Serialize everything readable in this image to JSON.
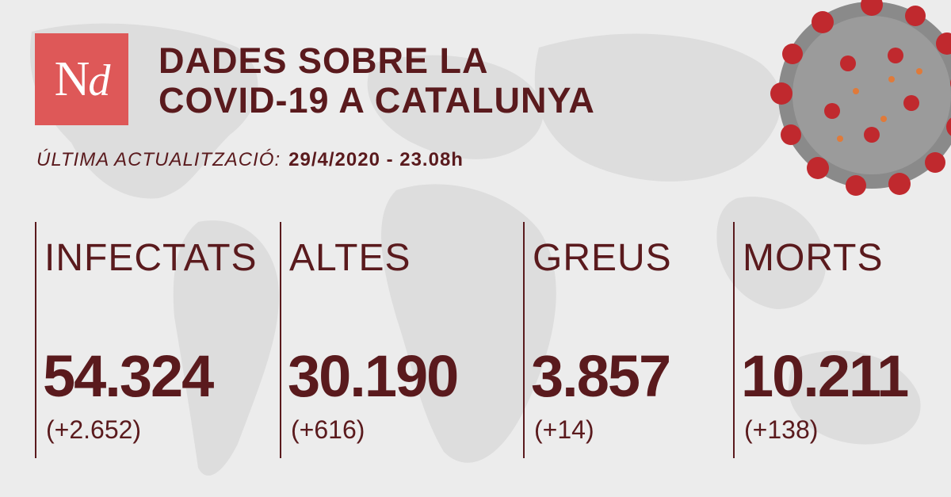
{
  "logo": {
    "text_n": "N",
    "text_d": "d"
  },
  "header": {
    "title_line1": "DADES SOBRE LA",
    "title_line2": "COVID-19 A CATALUNYA"
  },
  "update": {
    "label": "ÚLTIMA ACTUALITZACIÓ:",
    "timestamp": "29/4/2020 - 23.08h"
  },
  "stats": [
    {
      "label": "INFECTATS",
      "value": "54.324",
      "delta": "(+2.652)"
    },
    {
      "label": "ALTES",
      "value": "30.190",
      "delta": "(+616)"
    },
    {
      "label": "GREUS",
      "value": "3.857",
      "delta": "(+14)"
    },
    {
      "label": "MORTS",
      "value": "10.211",
      "delta": "(+138)"
    }
  ],
  "colors": {
    "text": "#5a1a1d",
    "logo_background": "#de5858",
    "background": "#ececec",
    "map": "#dcdcdc",
    "virus_core": "#8a8a8a",
    "virus_spike": "#c0292e"
  },
  "icons": {
    "background": "world-map",
    "decoration": "coronavirus-icon"
  }
}
